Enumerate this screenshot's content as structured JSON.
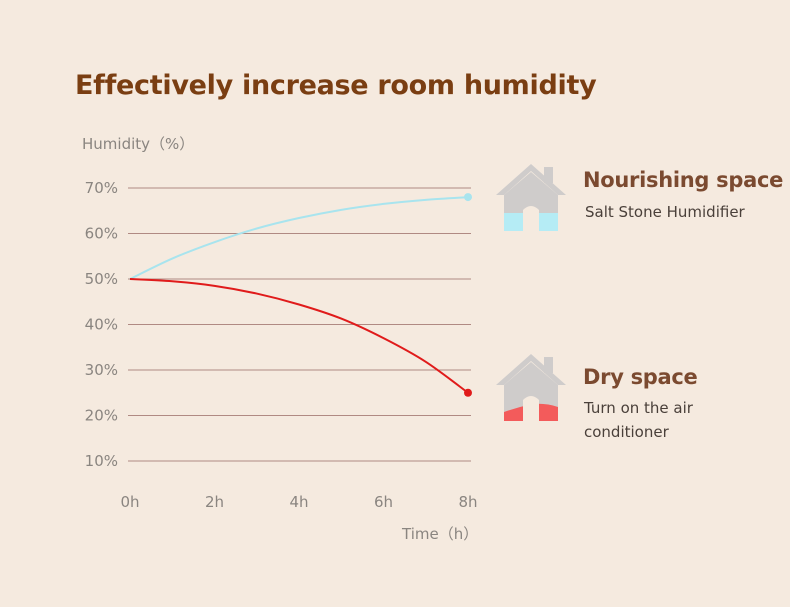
{
  "chart_data": {
    "type": "line",
    "title": "Effectively increase room humidity",
    "ylabel": "Humidity（%）",
    "xlabel": "Time（h）",
    "x_ticks": [
      "0h",
      "2h",
      "4h",
      "6h",
      "8h"
    ],
    "y_ticks": [
      "70%",
      "60%",
      "50%",
      "40%",
      "30%",
      "20%",
      "10%"
    ],
    "y_tick_values": [
      70,
      60,
      50,
      40,
      30,
      20,
      10
    ],
    "x_tick_values": [
      0,
      2,
      4,
      6,
      8
    ],
    "xlim": [
      0,
      8
    ],
    "ylim": [
      10,
      70
    ],
    "grid": true,
    "series": [
      {
        "name": "Nourishing space",
        "color": "#a8e4ee",
        "x": [
          0,
          1,
          2,
          3,
          4,
          5,
          6,
          7,
          8
        ],
        "y": [
          50,
          54.5,
          58.1,
          61.1,
          63.4,
          65.2,
          66.5,
          67.4,
          68
        ]
      },
      {
        "name": "Dry space",
        "color": "#e01b1b",
        "x": [
          0,
          1,
          2,
          3,
          4,
          5,
          6,
          7,
          8
        ],
        "y": [
          50,
          49.5,
          48.5,
          46.8,
          44.4,
          41.3,
          37,
          31.8,
          25
        ]
      }
    ]
  },
  "legend": [
    {
      "title": "Nourishing space",
      "subtitle_lines": [
        "Salt Stone Humidifier"
      ],
      "icon": "house-icon",
      "fill_color": "#b5ecf5",
      "fill_level": 0.5
    },
    {
      "title": "Dry space",
      "subtitle_lines": [
        "Turn on the air",
        "conditioner"
      ],
      "icon": "house-icon",
      "fill_color": "#f35b5b",
      "fill_level": 0.25
    }
  ],
  "colors": {
    "grid": "#b08a83",
    "axis_text": "#8a8580",
    "title": "#7a3e12",
    "house": "#cfcccb",
    "background": "#f5eadf"
  }
}
